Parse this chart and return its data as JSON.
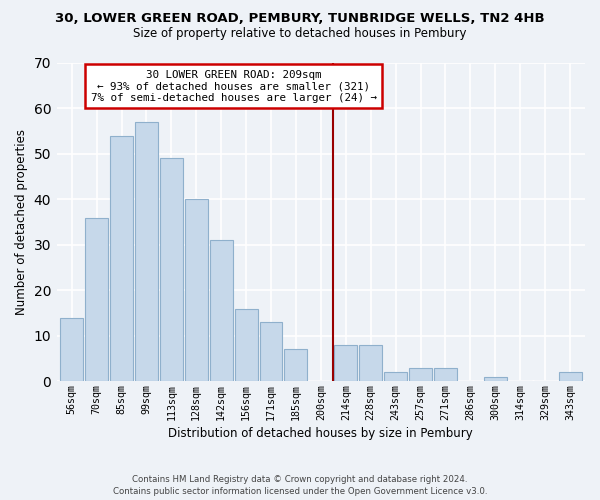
{
  "title_line1": "30, LOWER GREEN ROAD, PEMBURY, TUNBRIDGE WELLS, TN2 4HB",
  "title_line2": "Size of property relative to detached houses in Pembury",
  "xlabel": "Distribution of detached houses by size in Pembury",
  "ylabel": "Number of detached properties",
  "bar_labels": [
    "56sqm",
    "70sqm",
    "85sqm",
    "99sqm",
    "113sqm",
    "128sqm",
    "142sqm",
    "156sqm",
    "171sqm",
    "185sqm",
    "200sqm",
    "214sqm",
    "228sqm",
    "243sqm",
    "257sqm",
    "271sqm",
    "286sqm",
    "300sqm",
    "314sqm",
    "329sqm",
    "343sqm"
  ],
  "bar_values": [
    14,
    36,
    54,
    57,
    49,
    40,
    31,
    16,
    13,
    7,
    0,
    8,
    8,
    2,
    3,
    3,
    0,
    1,
    0,
    0,
    2
  ],
  "bar_color": "#c6d8ea",
  "bar_edge_color": "#8fb0cc",
  "vline_color": "#990000",
  "ylim": [
    0,
    70
  ],
  "yticks": [
    0,
    10,
    20,
    30,
    40,
    50,
    60,
    70
  ],
  "annotation_title": "30 LOWER GREEN ROAD: 209sqm",
  "annotation_line1": "← 93% of detached houses are smaller (321)",
  "annotation_line2": "7% of semi-detached houses are larger (24) →",
  "annotation_box_color": "#ffffff",
  "annotation_box_edge": "#cc0000",
  "footer_line1": "Contains HM Land Registry data © Crown copyright and database right 2024.",
  "footer_line2": "Contains public sector information licensed under the Open Government Licence v3.0.",
  "bg_color": "#eef2f7",
  "grid_color": "#ffffff"
}
